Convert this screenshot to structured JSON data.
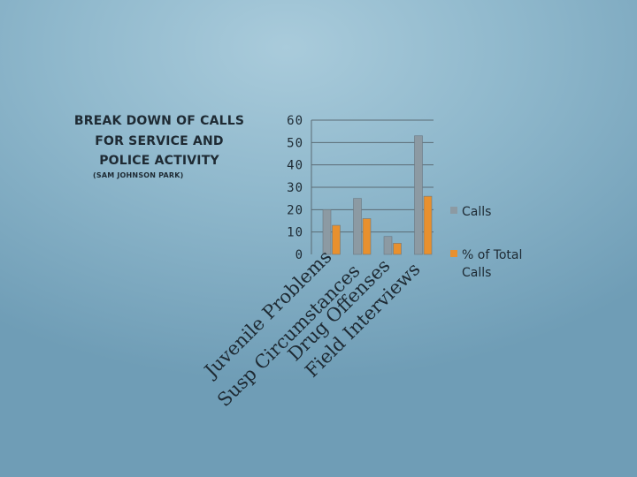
{
  "chart_data": {
    "type": "bar",
    "title": "BREAK DOWN OF CALLS FOR SERVICE AND POLICE ACTIVITY",
    "subtitle": "(SAM JOHNSON PARK)",
    "categories": [
      "Juvenile Problems",
      "Susp Circumstances",
      "Drug Offenses",
      "Field Interviews"
    ],
    "series": [
      {
        "name": "Calls",
        "values": [
          20,
          25,
          8,
          53
        ],
        "color": "#8c9aa3"
      },
      {
        "name": "% of Total Calls",
        "values": [
          13,
          16,
          5,
          26
        ],
        "color": "#e8902e"
      }
    ],
    "yticks": [
      0,
      10,
      20,
      30,
      40,
      50,
      60
    ],
    "ylim": [
      0,
      60
    ],
    "grid": true,
    "legend": "right"
  }
}
